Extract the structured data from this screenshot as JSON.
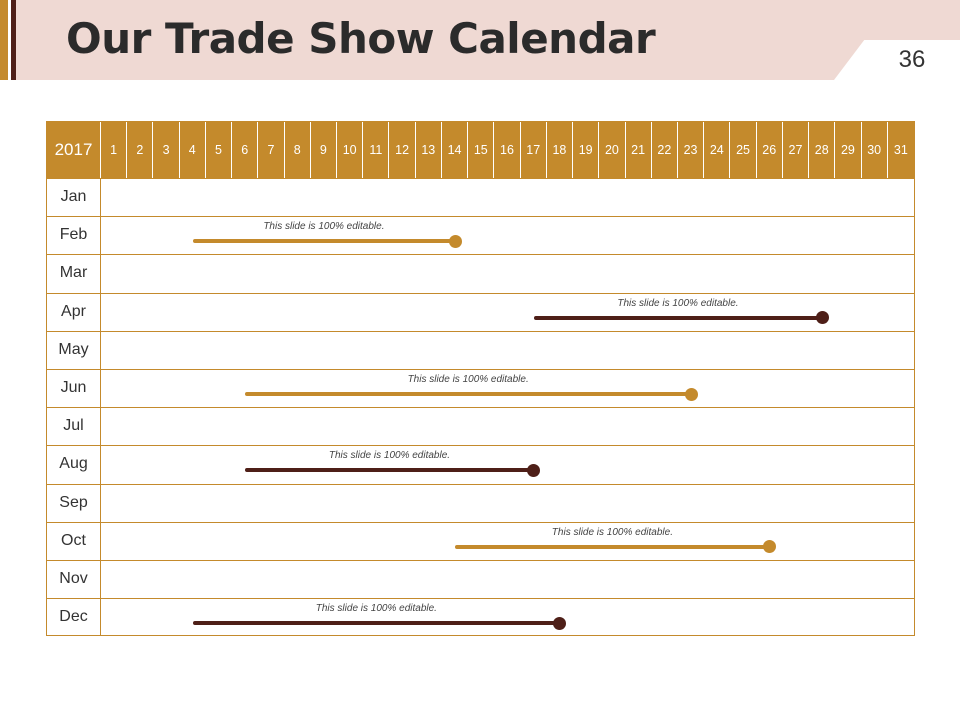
{
  "title": "Our Trade Show Calendar",
  "page_number": "36",
  "calendar": {
    "year": "2017",
    "days": [
      "1",
      "2",
      "3",
      "4",
      "5",
      "6",
      "7",
      "8",
      "9",
      "10",
      "11",
      "12",
      "13",
      "14",
      "15",
      "16",
      "17",
      "18",
      "19",
      "20",
      "21",
      "22",
      "23",
      "24",
      "25",
      "26",
      "27",
      "28",
      "29",
      "30",
      "31"
    ],
    "months": [
      "Jan",
      "Feb",
      "Mar",
      "Apr",
      "May",
      "Jun",
      "Jul",
      "Aug",
      "Sep",
      "Oct",
      "Nov",
      "Dec"
    ]
  },
  "colors": {
    "gold": "#c48a2c",
    "dark": "#4e1f18",
    "banner": "#efd9d3"
  },
  "events": [
    {
      "month": "Feb",
      "start_day": 4,
      "end_day": 14,
      "label": "This slide is 100% editable.",
      "color": "#c48a2c"
    },
    {
      "month": "Apr",
      "start_day": 17,
      "end_day": 28,
      "label": "This slide is 100% editable.",
      "color": "#4e1f18"
    },
    {
      "month": "Jun",
      "start_day": 6,
      "end_day": 23,
      "label": "This slide is 100% editable.",
      "color": "#c48a2c"
    },
    {
      "month": "Aug",
      "start_day": 6,
      "end_day": 17,
      "label": "This slide is 100% editable.",
      "color": "#4e1f18"
    },
    {
      "month": "Oct",
      "start_day": 14,
      "end_day": 26,
      "label": "This slide is 100% editable.",
      "color": "#c48a2c"
    },
    {
      "month": "Dec",
      "start_day": 4,
      "end_day": 18,
      "label": "This slide is 100% editable.",
      "color": "#4e1f18"
    }
  ]
}
